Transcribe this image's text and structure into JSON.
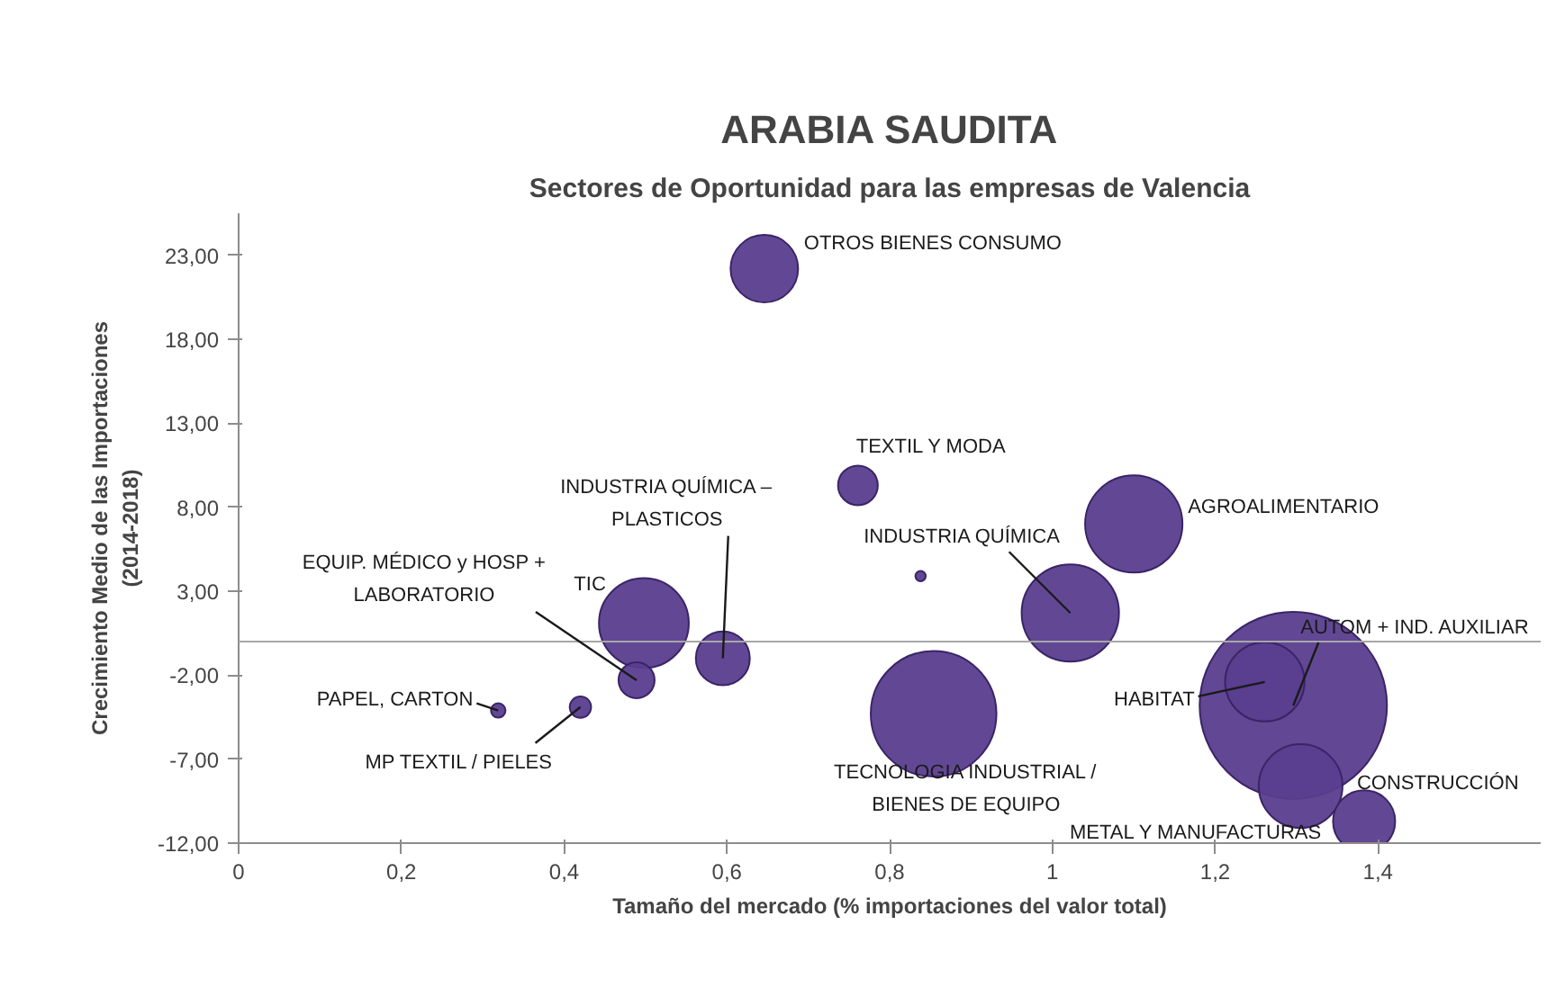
{
  "chart_data": {
    "type": "bubble",
    "title": "ARABIA SAUDITA",
    "subtitle": "Sectores de Oportunidad para las empresas de Valencia",
    "xlabel": "Tamaño del mercado (% importaciones del valor total)",
    "ylabel": "Crecimiento Medio de las Importaciones\n(2014-2018)",
    "x": [
      0.646,
      0.761,
      1.1,
      0.838,
      1.022,
      0.498,
      0.595,
      0.489,
      0.319,
      0.42,
      0.854,
      1.296,
      1.261,
      1.305,
      1.383
    ],
    "values": [
      22.2,
      9.3,
      7.0,
      3.9,
      1.7,
      1.1,
      -1.0,
      -2.3,
      -4.1,
      -3.9,
      -4.3,
      -3.8,
      -2.4,
      -8.6,
      -10.7
    ],
    "sizes": [
      0.13,
      0.045,
      0.27,
      0.003,
      0.27,
      0.23,
      0.083,
      0.037,
      0.006,
      0.013,
      0.45,
      1,
      0.18,
      0.2,
      0.11
    ],
    "color": "#5a3e8e",
    "annotations": [
      {
        "text": "OTROS BIENES CONSUMO",
        "x": 0.646,
        "y": 22.2
      },
      {
        "text": "TEXTIL Y MODA",
        "x": 0.761,
        "y": 9.3
      },
      {
        "text": "AGROALIMENTARIO",
        "x": 1.1,
        "y": 7.0
      },
      {
        "text": "INDUSTRIA QUÍMICA",
        "x": 1.022,
        "y": 1.7
      },
      {
        "text": "TIC",
        "x": 0.498,
        "y": 1.1
      },
      {
        "text": "INDUSTRIA QUÍMICA –\nPLASTICOS",
        "x": 0.595,
        "y": -1.0
      },
      {
        "text": "EQUIP. MÉDICO y HOSP +\nLABORATORIO",
        "x": 0.489,
        "y": -2.3
      },
      {
        "text": "PAPEL, CARTON",
        "x": 0.319,
        "y": -4.1
      },
      {
        "text": "MP TEXTIL / PIELES",
        "x": 0.42,
        "y": -3.9
      },
      {
        "text": "TECNOLOGIA INDUSTRIAL /\nBIENES DE EQUIPO",
        "x": 0.854,
        "y": -4.3
      },
      {
        "text": "AUTOM + IND. AUXILIAR",
        "x": 1.296,
        "y": -3.8
      },
      {
        "text": "HABITAT",
        "x": 1.261,
        "y": -2.4
      },
      {
        "text": "METAL Y MANUFACTURAS",
        "x": 1.305,
        "y": -8.6
      },
      {
        "text": "CONSTRUCCIÓN",
        "x": 1.383,
        "y": -10.7
      }
    ],
    "ref_lines": [
      {
        "axis": "y",
        "value": 0,
        "color": "#a6a6a6"
      }
    ],
    "xlim": [
      0,
      1.6
    ],
    "ylim": [
      -12,
      25.5
    ],
    "xticks": [
      {
        "value": 0,
        "label": "0"
      },
      {
        "value": 0.2,
        "label": "0,2"
      },
      {
        "value": 0.4,
        "label": "0,4"
      },
      {
        "value": 0.6,
        "label": "0,6"
      },
      {
        "value": 0.8,
        "label": "0,8"
      },
      {
        "value": 1,
        "label": "1"
      },
      {
        "value": 1.2,
        "label": "1,2"
      },
      {
        "value": 1.4,
        "label": "1,4"
      }
    ],
    "yticks": [
      {
        "value": -12,
        "label": "-12,00"
      },
      {
        "value": -7,
        "label": "-7,00"
      },
      {
        "value": -2,
        "label": "-2,00"
      },
      {
        "value": 3,
        "label": "3,00"
      },
      {
        "value": 8,
        "label": "8,00"
      },
      {
        "value": 13,
        "label": "13,00"
      },
      {
        "value": 18,
        "label": "18,00"
      },
      {
        "value": 23,
        "label": "23,00"
      }
    ],
    "grid": false
  }
}
